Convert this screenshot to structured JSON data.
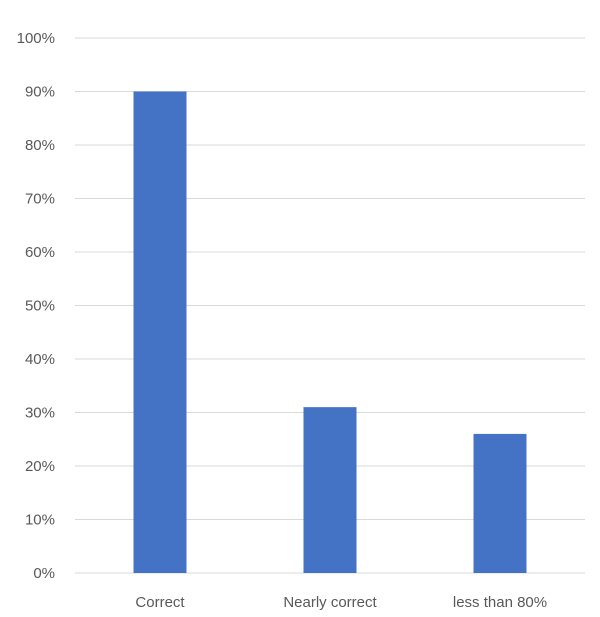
{
  "chart_data": {
    "type": "bar",
    "categories": [
      "Correct",
      "Nearly correct",
      "less than 80%"
    ],
    "values": [
      90,
      31,
      26
    ],
    "ylim": [
      0,
      100
    ],
    "yticks": [
      0,
      10,
      20,
      30,
      40,
      50,
      60,
      70,
      80,
      90,
      100
    ],
    "ytick_suffix": "%",
    "title": "",
    "xlabel": "",
    "ylabel": "",
    "grid": true,
    "legend": "none",
    "bar_color": "#4472c4",
    "grid_color": "#d9d9d9",
    "label_color": "#595959"
  }
}
